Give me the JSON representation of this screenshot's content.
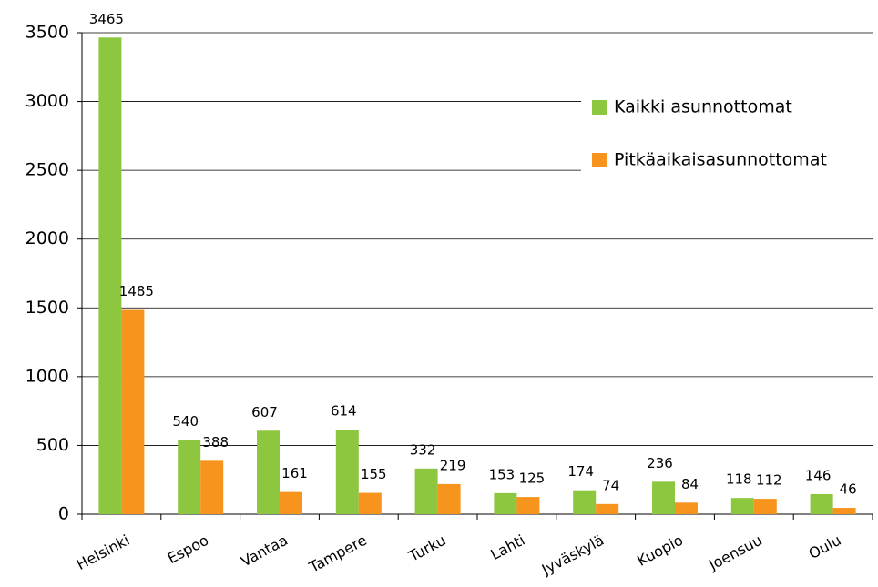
{
  "chart_data": {
    "type": "bar",
    "categories": [
      "Helsinki",
      "Espoo",
      "Vantaa",
      "Tampere",
      "Turku",
      "Lahti",
      "Jyväskylä",
      "Kuopio",
      "Joensuu",
      "Oulu"
    ],
    "series": [
      {
        "name": "Kaikki asunnottomat",
        "color": "#8dc63f",
        "values": [
          3465,
          540,
          607,
          614,
          332,
          153,
          174,
          236,
          118,
          146
        ]
      },
      {
        "name": "Pitkäaikaisasunnottomat",
        "color": "#f7941d",
        "values": [
          1485,
          388,
          161,
          155,
          219,
          125,
          74,
          84,
          112,
          46
        ]
      }
    ],
    "ylim": [
      0,
      3500
    ],
    "yticks": [
      0,
      500,
      1000,
      1500,
      2000,
      2500,
      3000,
      3500
    ],
    "grid": true,
    "legend": "right"
  }
}
